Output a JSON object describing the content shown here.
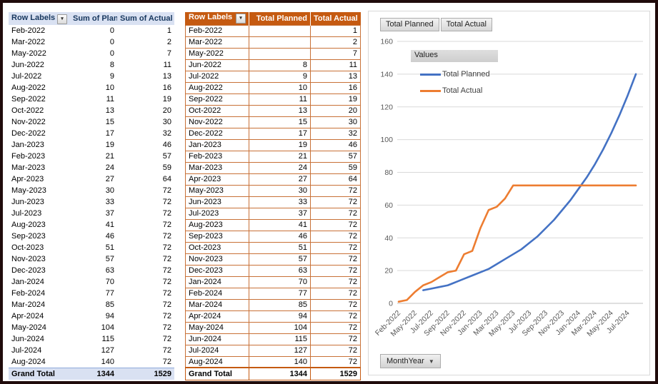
{
  "left_table": {
    "headers": [
      "Row Labels",
      "Sum of Plan",
      "Sum of Actual"
    ],
    "rows": [
      [
        "Feb-2022",
        "0",
        "1"
      ],
      [
        "Mar-2022",
        "0",
        "2"
      ],
      [
        "May-2022",
        "0",
        "7"
      ],
      [
        "Jun-2022",
        "8",
        "11"
      ],
      [
        "Jul-2022",
        "9",
        "13"
      ],
      [
        "Aug-2022",
        "10",
        "16"
      ],
      [
        "Sep-2022",
        "11",
        "19"
      ],
      [
        "Oct-2022",
        "13",
        "20"
      ],
      [
        "Nov-2022",
        "15",
        "30"
      ],
      [
        "Dec-2022",
        "17",
        "32"
      ],
      [
        "Jan-2023",
        "19",
        "46"
      ],
      [
        "Feb-2023",
        "21",
        "57"
      ],
      [
        "Mar-2023",
        "24",
        "59"
      ],
      [
        "Apr-2023",
        "27",
        "64"
      ],
      [
        "May-2023",
        "30",
        "72"
      ],
      [
        "Jun-2023",
        "33",
        "72"
      ],
      [
        "Jul-2023",
        "37",
        "72"
      ],
      [
        "Aug-2023",
        "41",
        "72"
      ],
      [
        "Sep-2023",
        "46",
        "72"
      ],
      [
        "Oct-2023",
        "51",
        "72"
      ],
      [
        "Nov-2023",
        "57",
        "72"
      ],
      [
        "Dec-2023",
        "63",
        "72"
      ],
      [
        "Jan-2024",
        "70",
        "72"
      ],
      [
        "Feb-2024",
        "77",
        "72"
      ],
      [
        "Mar-2024",
        "85",
        "72"
      ],
      [
        "Apr-2024",
        "94",
        "72"
      ],
      [
        "May-2024",
        "104",
        "72"
      ],
      [
        "Jun-2024",
        "115",
        "72"
      ],
      [
        "Jul-2024",
        "127",
        "72"
      ],
      [
        "Aug-2024",
        "140",
        "72"
      ]
    ],
    "grand_total": [
      "Grand Total",
      "1344",
      "1529"
    ]
  },
  "middle_table": {
    "headers": [
      "Row Labels",
      "Total Planned",
      "Total Actual"
    ],
    "rows": [
      [
        "Feb-2022",
        "",
        "1"
      ],
      [
        "Mar-2022",
        "",
        "2"
      ],
      [
        "May-2022",
        "",
        "7"
      ],
      [
        "Jun-2022",
        "8",
        "11"
      ],
      [
        "Jul-2022",
        "9",
        "13"
      ],
      [
        "Aug-2022",
        "10",
        "16"
      ],
      [
        "Sep-2022",
        "11",
        "19"
      ],
      [
        "Oct-2022",
        "13",
        "20"
      ],
      [
        "Nov-2022",
        "15",
        "30"
      ],
      [
        "Dec-2022",
        "17",
        "32"
      ],
      [
        "Jan-2023",
        "19",
        "46"
      ],
      [
        "Feb-2023",
        "21",
        "57"
      ],
      [
        "Mar-2023",
        "24",
        "59"
      ],
      [
        "Apr-2023",
        "27",
        "64"
      ],
      [
        "May-2023",
        "30",
        "72"
      ],
      [
        "Jun-2023",
        "33",
        "72"
      ],
      [
        "Jul-2023",
        "37",
        "72"
      ],
      [
        "Aug-2023",
        "41",
        "72"
      ],
      [
        "Sep-2023",
        "46",
        "72"
      ],
      [
        "Oct-2023",
        "51",
        "72"
      ],
      [
        "Nov-2023",
        "57",
        "72"
      ],
      [
        "Dec-2023",
        "63",
        "72"
      ],
      [
        "Jan-2024",
        "70",
        "72"
      ],
      [
        "Feb-2024",
        "77",
        "72"
      ],
      [
        "Mar-2024",
        "85",
        "72"
      ],
      [
        "Apr-2024",
        "94",
        "72"
      ],
      [
        "May-2024",
        "104",
        "72"
      ],
      [
        "Jun-2024",
        "115",
        "72"
      ],
      [
        "Jul-2024",
        "127",
        "72"
      ],
      [
        "Aug-2024",
        "140",
        "72"
      ]
    ],
    "grand_total": [
      "Grand Total",
      "1344",
      "1529"
    ]
  },
  "chart": {
    "field_buttons": [
      "Total Planned",
      "Total Actual"
    ],
    "legend_title": "Values",
    "axis_field_button": "MonthYear"
  },
  "chart_data": {
    "type": "line",
    "categories": [
      "Feb-2022",
      "Mar-2022",
      "May-2022",
      "Jun-2022",
      "Jul-2022",
      "Aug-2022",
      "Sep-2022",
      "Oct-2022",
      "Nov-2022",
      "Dec-2022",
      "Jan-2023",
      "Feb-2023",
      "Mar-2023",
      "Apr-2023",
      "May-2023",
      "Jun-2023",
      "Jul-2023",
      "Aug-2023",
      "Sep-2023",
      "Oct-2023",
      "Nov-2023",
      "Dec-2023",
      "Jan-2024",
      "Feb-2024",
      "Mar-2024",
      "Apr-2024",
      "May-2024",
      "Jun-2024",
      "Jul-2024",
      "Aug-2024"
    ],
    "series": [
      {
        "name": "Total Planned",
        "color": "#4472C4",
        "values": [
          null,
          null,
          null,
          8,
          9,
          10,
          11,
          13,
          15,
          17,
          19,
          21,
          24,
          27,
          30,
          33,
          37,
          41,
          46,
          51,
          57,
          63,
          70,
          77,
          85,
          94,
          104,
          115,
          127,
          140
        ]
      },
      {
        "name": "Total Actual",
        "color": "#ED7D31",
        "values": [
          1,
          2,
          7,
          11,
          13,
          16,
          19,
          20,
          30,
          32,
          46,
          57,
          59,
          64,
          72,
          72,
          72,
          72,
          72,
          72,
          72,
          72,
          72,
          72,
          72,
          72,
          72,
          72,
          72,
          72
        ]
      }
    ],
    "title": "",
    "xlabel": "MonthYear",
    "ylabel": "",
    "ylim": [
      0,
      160
    ],
    "ytick_step": 20,
    "xtick_every": 2,
    "grid": true,
    "legend_position": "top-left-inside"
  },
  "colors": {
    "planned_line": "#4472C4",
    "actual_line": "#ED7D31",
    "left_header_bg": "#D9E1F2",
    "mid_header_bg": "#C55A11",
    "gridline": "#D9D9D9",
    "axis_text": "#595959"
  }
}
